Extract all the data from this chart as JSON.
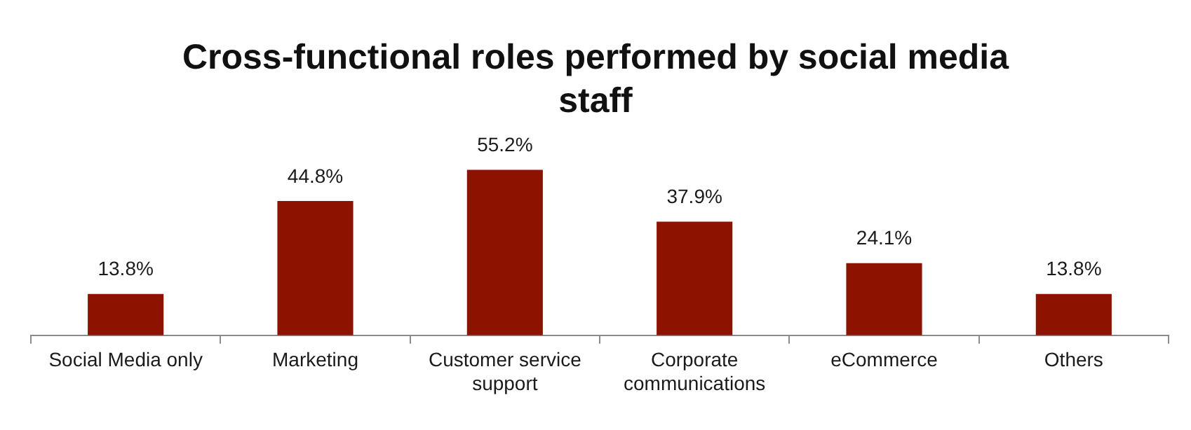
{
  "chart_data": {
    "type": "bar",
    "title": "Cross-functional roles performed by social media staff",
    "categories": [
      "Social Media only",
      "Marketing",
      "Customer service support",
      "Corporate communications",
      "eCommerce",
      "Others"
    ],
    "values": [
      13.8,
      44.8,
      55.2,
      37.9,
      24.1,
      13.8
    ],
    "value_labels": [
      "13.8%",
      "44.8%",
      "55.2%",
      "37.9%",
      "24.1%",
      "13.8%"
    ],
    "color": "#8e1200",
    "tick_labels": "x"
  }
}
